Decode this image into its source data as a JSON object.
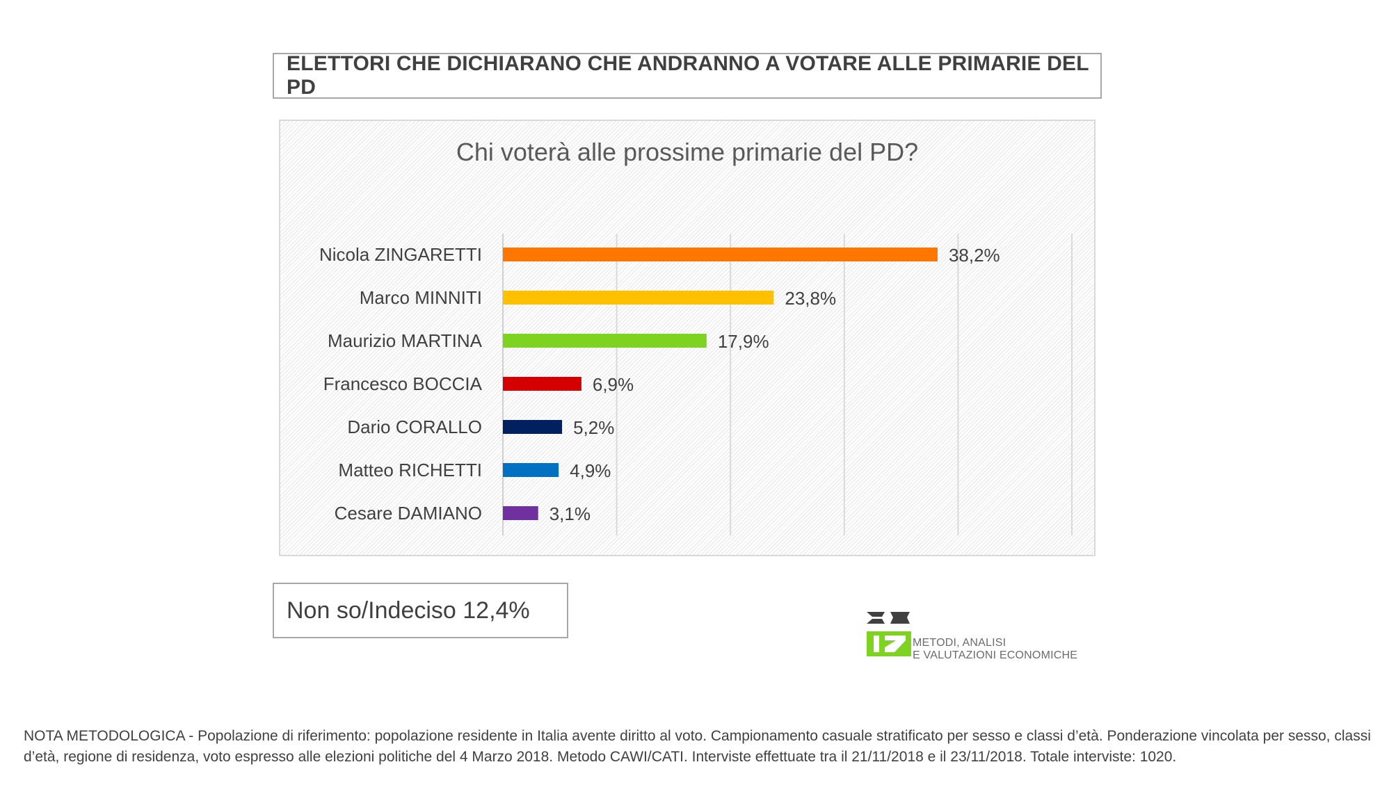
{
  "header": {
    "title": "ELETTORI CHE DICHIARANO CHE ANDRANNO A VOTARE ALLE PRIMARIE DEL PD"
  },
  "chart_data": {
    "type": "bar",
    "orientation": "horizontal",
    "title": "Chi voterà alle prossime primarie del PD?",
    "categories": [
      "Nicola ZINGARETTI",
      "Marco MINNITI",
      "Maurizio MARTINA",
      "Francesco BOCCIA",
      "Dario CORALLO",
      "Matteo RICHETTI",
      "Cesare DAMIANO"
    ],
    "values": [
      38.2,
      23.8,
      17.9,
      6.9,
      5.2,
      4.9,
      3.1
    ],
    "value_labels": [
      "38,2%",
      "23,8%",
      "17,9%",
      "6,9%",
      "5,2%",
      "4,9%",
      "3,1%"
    ],
    "colors": [
      "#ff7700",
      "#ffc000",
      "#7ed321",
      "#d40000",
      "#002060",
      "#0070c0",
      "#7030a0"
    ],
    "xlim": [
      0,
      50
    ],
    "grid": true,
    "legend": "none"
  },
  "undecided": {
    "text": "Non so/Indeciso 12,4%"
  },
  "logo": {
    "line1": "METODI, ANALISI",
    "line2": "E VALUTAZIONI ECONOMICHE",
    "accent_color": "#7ed321",
    "dark_color": "#404040"
  },
  "note": {
    "text": "NOTA METODOLOGICA - Popolazione di riferimento: popolazione residente in Italia avente diritto al voto. Campionamento casuale stratificato per sesso e classi d’età. Ponderazione vincolata per sesso, classi d’età, regione di residenza, voto espresso alle elezioni politiche del 4 Marzo 2018. Metodo CAWI/CATI. Interviste effettuate tra il 21/11/2018 e il 23/11/2018. Totale interviste: 1020."
  }
}
